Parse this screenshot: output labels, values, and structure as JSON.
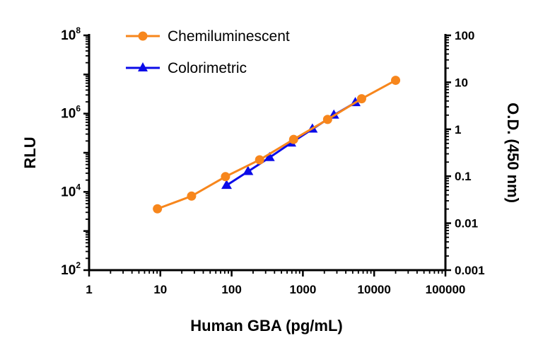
{
  "chart_data": {
    "type": "line",
    "xlabel": "Human GBA (pg/mL)",
    "ylabel": "RLU",
    "y2label": "O.D. (450 nm)",
    "xscale": "log",
    "yscale": "log",
    "y2scale": "log",
    "xlim": [
      1,
      100000
    ],
    "ylim": [
      100,
      100000000
    ],
    "y2lim": [
      0.001,
      100
    ],
    "xticks": [
      "1",
      "10",
      "100",
      "1000",
      "10000",
      "100000"
    ],
    "yticks": [
      {
        "base": "10",
        "exp": "2"
      },
      {
        "base": "10",
        "exp": "4"
      },
      {
        "base": "10",
        "exp": "6"
      },
      {
        "base": "10",
        "exp": "8"
      }
    ],
    "y2ticks": [
      "0.001",
      "0.01",
      "0.1",
      "1",
      "10",
      "100"
    ],
    "grid": false,
    "legend_position": "top-left",
    "series": [
      {
        "name": "Chemiluminescent",
        "axis": "left",
        "marker": "circle",
        "color": "#F7861C",
        "x": [
          9.1,
          27.4,
          82,
          247,
          741,
          2222,
          6667,
          20000
        ],
        "y": [
          3700,
          7800,
          24500,
          66000,
          219000,
          710000,
          2400000,
          7100000
        ]
      },
      {
        "name": "Colorimetric",
        "axis": "right",
        "marker": "triangle",
        "color": "#0B0BE8",
        "x": [
          85,
          170,
          340,
          680,
          1360,
          2720,
          5440
        ],
        "y": [
          0.064,
          0.126,
          0.25,
          0.51,
          1.01,
          2.0,
          3.7
        ]
      }
    ]
  }
}
